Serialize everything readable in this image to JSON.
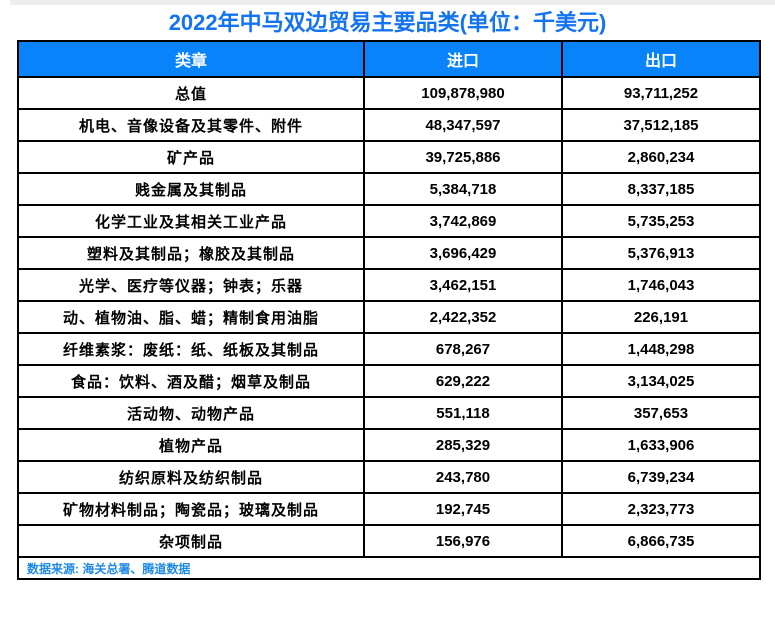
{
  "title": "2022年中马双边贸易主要品类(单位：千美元)",
  "colors": {
    "title": "#1473F0",
    "header_bg": "#0883FA",
    "header_text": "#FFFFFF",
    "border": "#000000",
    "source_text": "#1E8AE6"
  },
  "table": {
    "headers": [
      "类章",
      "进口",
      "出口"
    ],
    "rows": [
      {
        "category": "总值",
        "import": "109,878,980",
        "export": "93,711,252"
      },
      {
        "category": "机电、音像设备及其零件、附件",
        "import": "48,347,597",
        "export": "37,512,185"
      },
      {
        "category": "矿产品",
        "import": "39,725,886",
        "export": "2,860,234"
      },
      {
        "category": "贱金属及其制品",
        "import": "5,384,718",
        "export": "8,337,185"
      },
      {
        "category": "化学工业及其相关工业产品",
        "import": "3,742,869",
        "export": "5,735,253"
      },
      {
        "category": "塑料及其制品；橡胶及其制品",
        "import": "3,696,429",
        "export": "5,376,913"
      },
      {
        "category": "光学、医疗等仪器；钟表；乐器",
        "import": "3,462,151",
        "export": "1,746,043"
      },
      {
        "category": "动、植物油、脂、蜡；精制食用油脂",
        "import": "2,422,352",
        "export": "226,191"
      },
      {
        "category": "纤维素浆：废纸：纸、纸板及其制品",
        "import": "678,267",
        "export": "1,448,298"
      },
      {
        "category": "食品：饮料、酒及醋；烟草及制品",
        "import": "629,222",
        "export": "3,134,025"
      },
      {
        "category": "活动物、动物产品",
        "import": "551,118",
        "export": "357,653"
      },
      {
        "category": "植物产品",
        "import": "285,329",
        "export": "1,633,906"
      },
      {
        "category": "纺织原料及纺织制品",
        "import": "243,780",
        "export": "6,739,234"
      },
      {
        "category": "矿物材料制品；陶瓷品；玻璃及制品",
        "import": "192,745",
        "export": "2,323,773"
      },
      {
        "category": "杂项制品",
        "import": "156,976",
        "export": "6,866,735"
      }
    ],
    "source": "数据来源: 海关总署、腾道数据"
  },
  "chart_data": {
    "type": "table",
    "title": "2022年中马双边贸易主要品类(单位：千美元)",
    "columns": [
      "类章",
      "进口",
      "出口"
    ],
    "rows": [
      [
        "总值",
        109878980,
        93711252
      ],
      [
        "机电、音像设备及其零件、附件",
        48347597,
        37512185
      ],
      [
        "矿产品",
        39725886,
        2860234
      ],
      [
        "贱金属及其制品",
        5384718,
        8337185
      ],
      [
        "化学工业及其相关工业产品",
        3742869,
        5735253
      ],
      [
        "塑料及其制品；橡胶及其制品",
        3696429,
        5376913
      ],
      [
        "光学、医疗等仪器；钟表；乐器",
        3462151,
        1746043
      ],
      [
        "动、植物油、脂、蜡；精制食用油脂",
        2422352,
        226191
      ],
      [
        "纤维素浆：废纸：纸、纸板及其制品",
        678267,
        1448298
      ],
      [
        "食品：饮料、酒及醋；烟草及制品",
        629222,
        3134025
      ],
      [
        "活动物、动物产品",
        551118,
        357653
      ],
      [
        "植物产品",
        285329,
        1633906
      ],
      [
        "纺织原料及纺织制品",
        243780,
        6739234
      ],
      [
        "矿物材料制品；陶瓷品；玻璃及制品",
        192745,
        2323773
      ],
      [
        "杂项制品",
        156976,
        6866735
      ]
    ],
    "source": "数据来源: 海关总署、腾道数据"
  }
}
